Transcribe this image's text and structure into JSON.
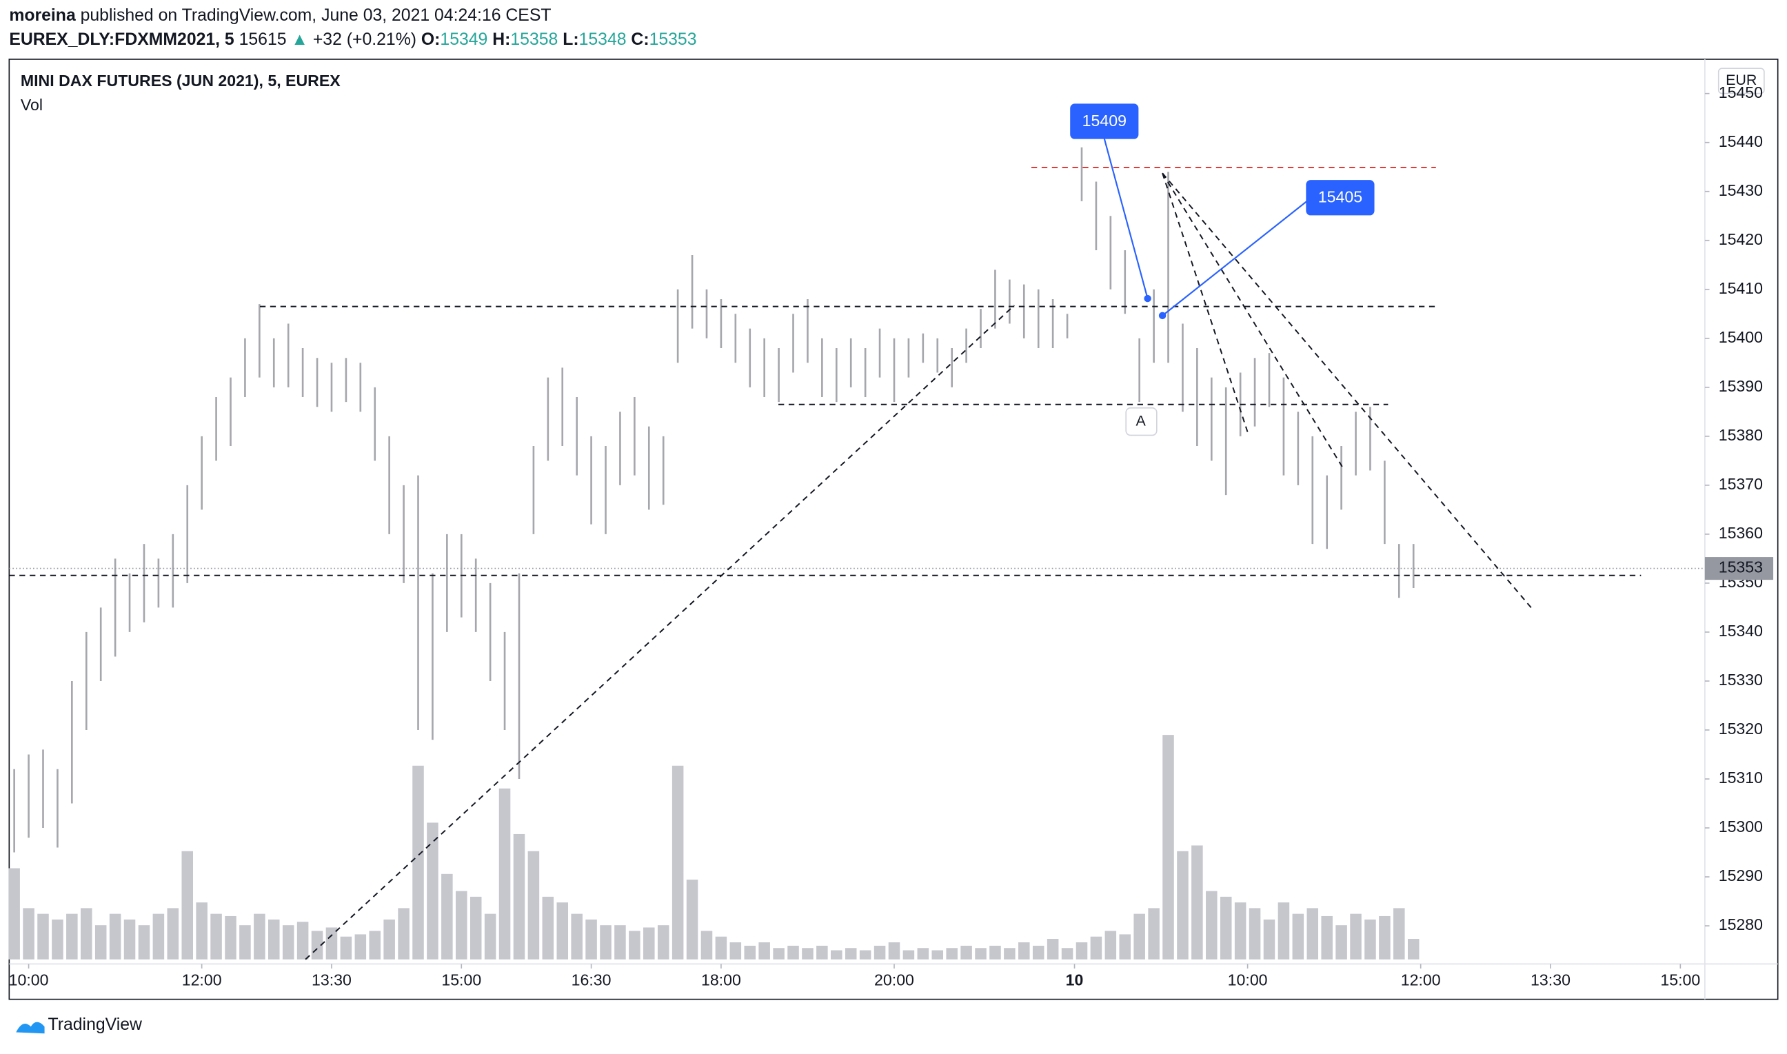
{
  "header": {
    "author": "moreina",
    "published": "published on TradingView.com, June 03, 2021 04:24:16 CEST",
    "symbol": "EUREX_DLY:FDXMM2021, 5",
    "price": "15615",
    "change": "+32 (+0.21%)",
    "o_label": "O:",
    "open": "15349",
    "h_label": "H:",
    "high": "15358",
    "l_label": "L:",
    "low": "15348",
    "c_label": "C:",
    "close": "15353"
  },
  "footer": {
    "brand": "TradingView"
  },
  "chart_data": {
    "type": "ohlc",
    "title": "MINI DAX FUTURES (JUN 2021), 5, EUREX",
    "subtitle": "Vol",
    "currency": "EUR",
    "bar_color": "#a6a7ad",
    "volume_color": "#c6c7cd",
    "xlim": [
      -2.7,
      232.4
    ],
    "ylim": [
      15265,
      15457
    ],
    "y2lim": [
      0,
      220
    ],
    "xticks": [
      {
        "value": 0,
        "label": "10:00"
      },
      {
        "value": 24,
        "label": "12:00"
      },
      {
        "value": 42,
        "label": "13:30"
      },
      {
        "value": 60,
        "label": "15:00"
      },
      {
        "value": 78,
        "label": "16:30"
      },
      {
        "value": 96,
        "label": "18:00"
      },
      {
        "value": 120,
        "label": "20:00"
      },
      {
        "value": 145,
        "label": "10"
      },
      {
        "value": 169,
        "label": "10:00"
      },
      {
        "value": 193,
        "label": "12:00"
      },
      {
        "value": 211,
        "label": "13:30"
      },
      {
        "value": 229,
        "label": "15:00"
      }
    ],
    "yticks": [
      15280,
      15290,
      15300,
      15310,
      15320,
      15330,
      15340,
      15350,
      15360,
      15370,
      15380,
      15390,
      15400,
      15410,
      15420,
      15430,
      15440,
      15450
    ],
    "last_price": 15353,
    "annotations": [
      {
        "text": "15409"
      },
      {
        "text": "15405"
      },
      {
        "text": "A"
      }
    ],
    "x": [
      -2,
      0,
      2,
      4,
      6,
      8,
      10,
      12,
      14,
      16,
      18,
      20,
      22,
      24,
      26,
      28,
      30,
      32,
      34,
      36,
      38,
      40,
      42,
      44,
      46,
      48,
      50,
      52,
      54,
      56,
      58,
      60,
      62,
      64,
      66,
      68,
      70,
      72,
      74,
      76,
      78,
      80,
      82,
      84,
      86,
      88,
      90,
      92,
      94,
      96,
      98,
      100,
      102,
      104,
      106,
      108,
      110,
      112,
      114,
      116,
      118,
      120,
      122,
      124,
      126,
      128,
      130,
      132,
      134,
      136,
      138,
      140,
      142,
      144,
      146,
      148,
      150,
      152,
      154,
      156,
      158,
      160,
      162,
      164,
      166,
      168,
      170,
      172,
      174,
      176,
      178,
      180,
      182,
      184,
      186,
      188,
      190,
      192
    ],
    "high": [
      15312,
      15315,
      15316,
      15312,
      15330,
      15340,
      15345,
      15355,
      15352,
      15358,
      15355,
      15360,
      15370,
      15380,
      15388,
      15392,
      15400,
      15407,
      15400,
      15403,
      15398,
      15396,
      15395,
      15396,
      15395,
      15390,
      15380,
      15370,
      15372,
      15352,
      15360,
      15360,
      15355,
      15350,
      15340,
      15352,
      15378,
      15392,
      15394,
      15388,
      15380,
      15378,
      15385,
      15388,
      15382,
      15380,
      15410,
      15417,
      15410,
      15408,
      15405,
      15402,
      15400,
      15398,
      15405,
      15408,
      15400,
      15398,
      15400,
      15398,
      15402,
      15400,
      15400,
      15401,
      15400,
      15398,
      15402,
      15406,
      15414,
      15412,
      15411,
      15410,
      15408,
      15405,
      15439,
      15432,
      15425,
      15418,
      15400,
      15410,
      15434,
      15403,
      15398,
      15392,
      15390,
      15393,
      15396,
      15397,
      15392,
      15385,
      15380,
      15372,
      15378,
      15385,
      15386,
      15375,
      15358,
      15358
    ],
    "low": [
      15295,
      15298,
      15300,
      15296,
      15305,
      15320,
      15330,
      15335,
      15340,
      15342,
      15345,
      15345,
      15350,
      15365,
      15375,
      15378,
      15388,
      15392,
      15390,
      15390,
      15388,
      15386,
      15385,
      15387,
      15385,
      15375,
      15360,
      15350,
      15320,
      15318,
      15340,
      15343,
      15340,
      15330,
      15320,
      15310,
      15360,
      15375,
      15378,
      15372,
      15362,
      15360,
      15370,
      15372,
      15365,
      15366,
      15395,
      15402,
      15400,
      15398,
      15395,
      15390,
      15388,
      15387,
      15393,
      15395,
      15388,
      15387,
      15390,
      15388,
      15392,
      15387,
      15392,
      15395,
      15393,
      15390,
      15395,
      15398,
      15402,
      15403,
      15400,
      15398,
      15398,
      15400,
      15428,
      15418,
      15410,
      15405,
      15387,
      15395,
      15395,
      15385,
      15378,
      15375,
      15368,
      15380,
      15382,
      15386,
      15372,
      15370,
      15358,
      15357,
      15365,
      15372,
      15373,
      15358,
      15347,
      15349
    ],
    "volume": [
      80,
      45,
      40,
      35,
      40,
      45,
      30,
      40,
      35,
      30,
      40,
      45,
      95,
      50,
      40,
      38,
      30,
      40,
      35,
      30,
      33,
      25,
      28,
      20,
      22,
      25,
      35,
      45,
      170,
      120,
      75,
      60,
      55,
      40,
      150,
      110,
      95,
      55,
      50,
      40,
      35,
      30,
      30,
      25,
      28,
      30,
      170,
      70,
      25,
      20,
      15,
      12,
      15,
      10,
      12,
      10,
      12,
      8,
      10,
      8,
      12,
      15,
      8,
      10,
      8,
      10,
      12,
      10,
      12,
      10,
      15,
      12,
      18,
      10,
      15,
      20,
      25,
      22,
      40,
      45,
      197,
      95,
      100,
      60,
      55,
      50,
      45,
      35,
      50,
      40,
      45,
      38,
      30,
      40,
      35,
      38,
      45,
      18
    ]
  }
}
